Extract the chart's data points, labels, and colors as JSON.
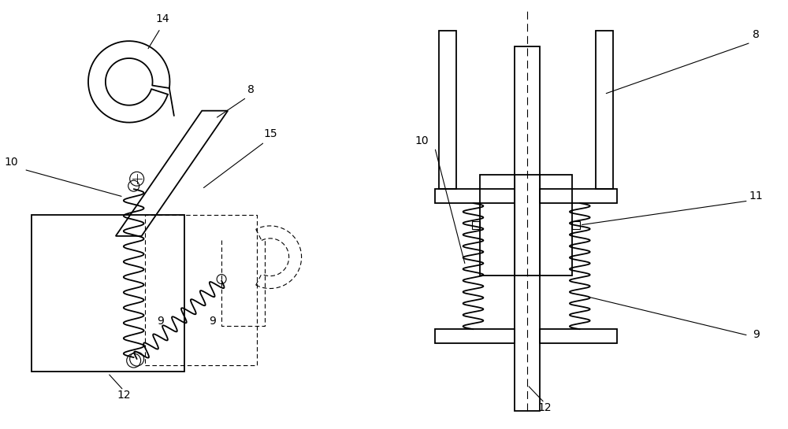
{
  "bg_color": "#ffffff",
  "line_color": "#000000",
  "fig_width": 10.0,
  "fig_height": 5.45,
  "lw_main": 1.3,
  "lw_thin": 0.8,
  "font_size": 10
}
